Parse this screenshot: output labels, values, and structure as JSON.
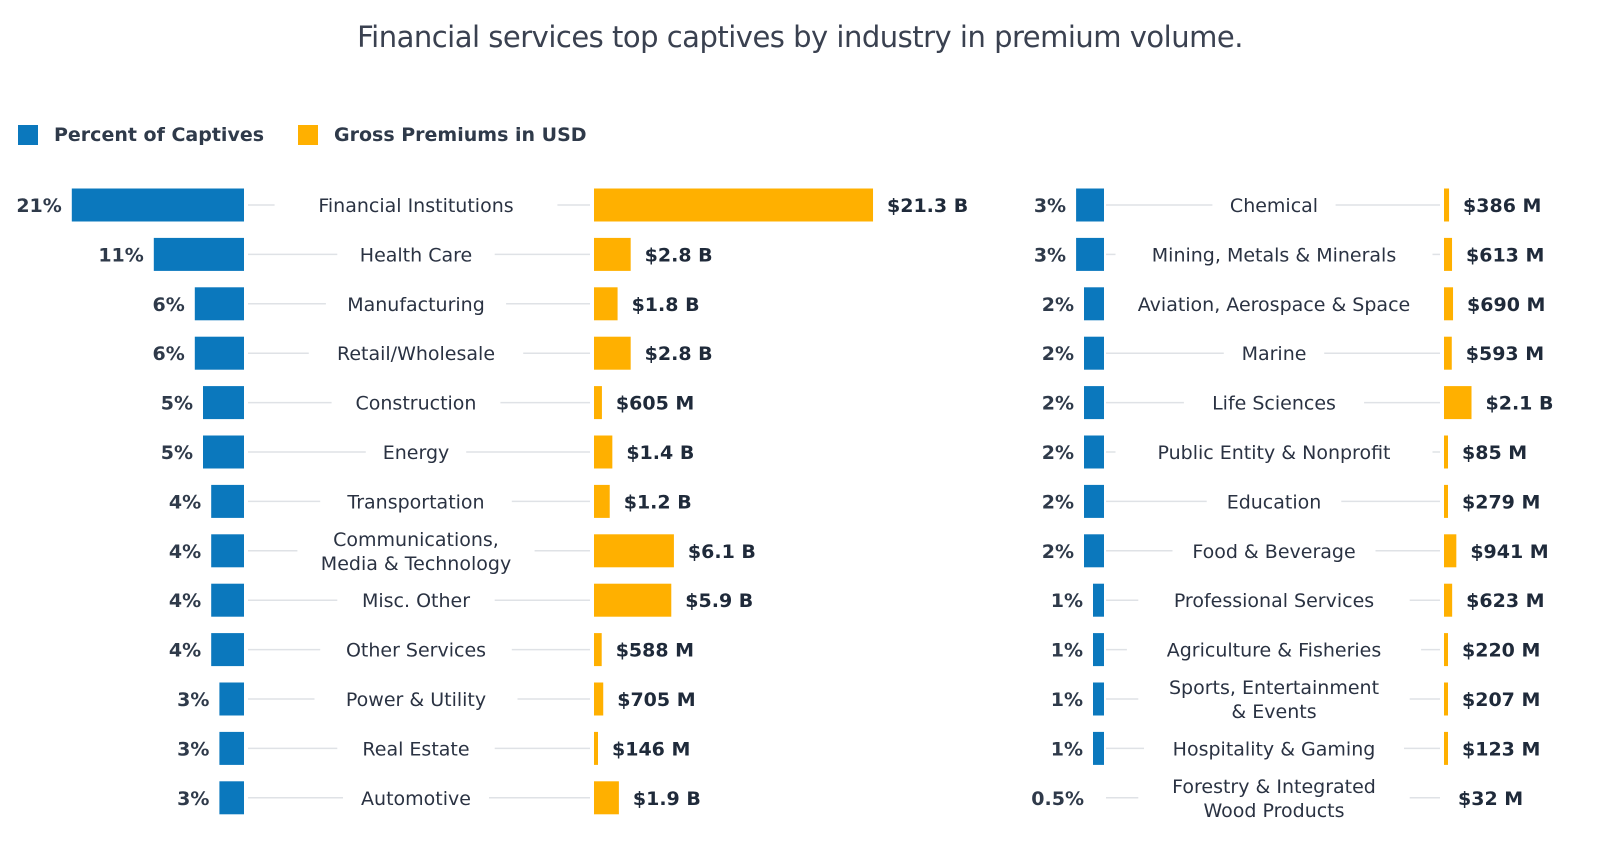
{
  "title": "Financial services top captives by industry in premium volume.",
  "legend": [
    {
      "label": "Percent of Captives",
      "color": "#0b78bd"
    },
    {
      "label": "Gross Premiums in USD",
      "color": "#ffb000"
    }
  ],
  "chart_data": {
    "type": "bar",
    "title": "Financial services top captives by industry in premium volume.",
    "series": [
      {
        "name": "Percent of Captives",
        "unit": "%"
      },
      {
        "name": "Gross Premiums in USD",
        "unit": "USD"
      }
    ],
    "rows": [
      {
        "category": [
          "Financial Institutions"
        ],
        "percent": 21,
        "percent_label": "21%",
        "premium_usd_m": 21300,
        "premium_label": "$21.3 B"
      },
      {
        "category": [
          "Health Care"
        ],
        "percent": 11,
        "percent_label": "11%",
        "premium_usd_m": 2800,
        "premium_label": "$2.8 B"
      },
      {
        "category": [
          "Manufacturing"
        ],
        "percent": 6,
        "percent_label": "6%",
        "premium_usd_m": 1800,
        "premium_label": "$1.8 B"
      },
      {
        "category": [
          "Retail/Wholesale"
        ],
        "percent": 6,
        "percent_label": "6%",
        "premium_usd_m": 2800,
        "premium_label": "$2.8 B"
      },
      {
        "category": [
          "Construction"
        ],
        "percent": 5,
        "percent_label": "5%",
        "premium_usd_m": 605,
        "premium_label": "$605 M"
      },
      {
        "category": [
          "Energy"
        ],
        "percent": 5,
        "percent_label": "5%",
        "premium_usd_m": 1400,
        "premium_label": "$1.4 B"
      },
      {
        "category": [
          "Transportation"
        ],
        "percent": 4,
        "percent_label": "4%",
        "premium_usd_m": 1200,
        "premium_label": "$1.2 B"
      },
      {
        "category": [
          "Communications,",
          "Media & Technology"
        ],
        "percent": 4,
        "percent_label": "4%",
        "premium_usd_m": 6100,
        "premium_label": "$6.1 B"
      },
      {
        "category": [
          "Misc. Other"
        ],
        "percent": 4,
        "percent_label": "4%",
        "premium_usd_m": 5900,
        "premium_label": "$5.9 B"
      },
      {
        "category": [
          "Other Services"
        ],
        "percent": 4,
        "percent_label": "4%",
        "premium_usd_m": 588,
        "premium_label": "$588 M"
      },
      {
        "category": [
          "Power & Utility"
        ],
        "percent": 3,
        "percent_label": "3%",
        "premium_usd_m": 705,
        "premium_label": "$705 M"
      },
      {
        "category": [
          "Real Estate"
        ],
        "percent": 3,
        "percent_label": "3%",
        "premium_usd_m": 146,
        "premium_label": "$146 M"
      },
      {
        "category": [
          "Automotive"
        ],
        "percent": 3,
        "percent_label": "3%",
        "premium_usd_m": 1900,
        "premium_label": "$1.9 B"
      },
      {
        "category": [
          "Chemical"
        ],
        "percent": 3,
        "percent_label": "3%",
        "premium_usd_m": 386,
        "premium_label": "$386 M"
      },
      {
        "category": [
          "Mining, Metals & Minerals"
        ],
        "percent": 3,
        "percent_label": "3%",
        "premium_usd_m": 613,
        "premium_label": "$613 M"
      },
      {
        "category": [
          "Aviation, Aerospace & Space"
        ],
        "percent": 2,
        "percent_label": "2%",
        "premium_usd_m": 690,
        "premium_label": "$690 M"
      },
      {
        "category": [
          "Marine"
        ],
        "percent": 2,
        "percent_label": "2%",
        "premium_usd_m": 593,
        "premium_label": "$593 M"
      },
      {
        "category": [
          "Life Sciences"
        ],
        "percent": 2,
        "percent_label": "2%",
        "premium_usd_m": 2100,
        "premium_label": "$2.1 B"
      },
      {
        "category": [
          "Public Entity & Nonprofit"
        ],
        "percent": 2,
        "percent_label": "2%",
        "premium_usd_m": 85,
        "premium_label": "$85 M"
      },
      {
        "category": [
          "Education"
        ],
        "percent": 2,
        "percent_label": "2%",
        "premium_usd_m": 279,
        "premium_label": "$279 M"
      },
      {
        "category": [
          "Food & Beverage"
        ],
        "percent": 2,
        "percent_label": "2%",
        "premium_usd_m": 941,
        "premium_label": "$941 M"
      },
      {
        "category": [
          "Professional Services"
        ],
        "percent": 1,
        "percent_label": "1%",
        "premium_usd_m": 623,
        "premium_label": "$623 M"
      },
      {
        "category": [
          "Agriculture & Fisheries"
        ],
        "percent": 1,
        "percent_label": "1%",
        "premium_usd_m": 220,
        "premium_label": "$220 M"
      },
      {
        "category": [
          "Sports, Entertainment",
          "& Events"
        ],
        "percent": 1,
        "percent_label": "1%",
        "premium_usd_m": 207,
        "premium_label": "$207 M"
      },
      {
        "category": [
          "Hospitality & Gaming"
        ],
        "percent": 1,
        "percent_label": "1%",
        "premium_usd_m": 123,
        "premium_label": "$123 M"
      },
      {
        "category": [
          "Forestry & Integrated",
          "Wood Products"
        ],
        "percent": 0.5,
        "percent_label": "0.5%",
        "premium_usd_m": 32,
        "premium_label": "$32 M"
      }
    ]
  }
}
